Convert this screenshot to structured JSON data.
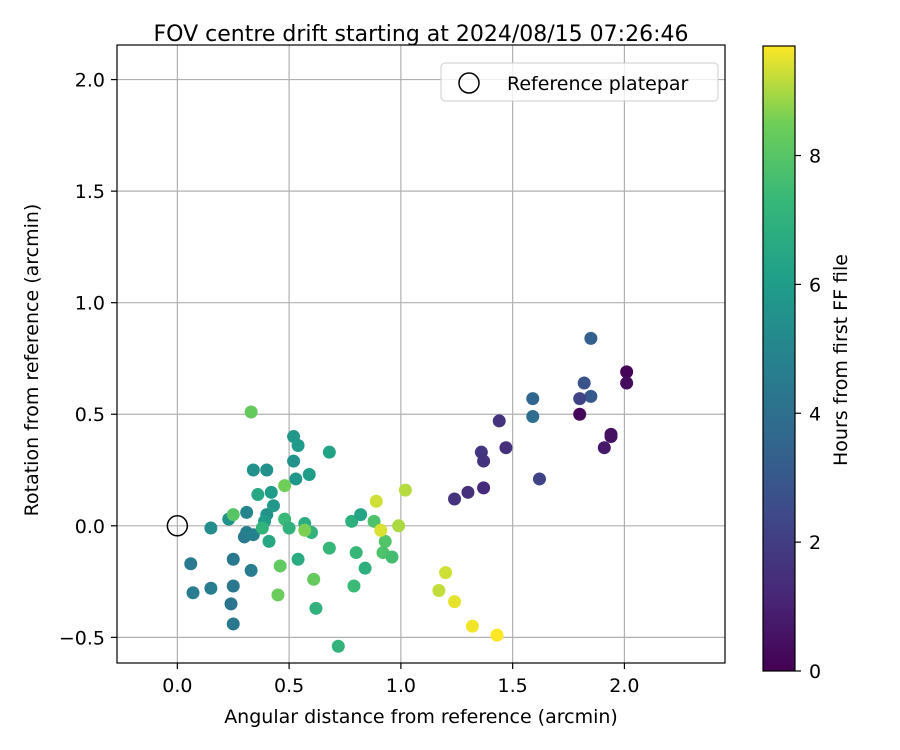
{
  "chart_data": {
    "type": "scatter",
    "title": "FOV centre drift starting at 2024/08/15 07:26:46",
    "xlabel": "Angular distance from reference (arcmin)",
    "ylabel": "Rotation from reference (arcmin)",
    "xlim": [
      -0.27,
      2.45
    ],
    "ylim": [
      -0.615,
      2.155
    ],
    "xticks": [
      0.0,
      0.5,
      1.0,
      1.5,
      2.0
    ],
    "xtick_labels": [
      "0.0",
      "0.5",
      "1.0",
      "1.5",
      "2.0"
    ],
    "yticks": [
      -0.5,
      0.0,
      0.5,
      1.0,
      1.5,
      2.0
    ],
    "ytick_labels": [
      "−0.5",
      "0.0",
      "0.5",
      "1.0",
      "1.5",
      "2.0"
    ],
    "grid": true,
    "legend": {
      "placement": "top-right",
      "entries": [
        "Reference platepar"
      ]
    },
    "reference_point": {
      "label": "Reference platepar",
      "x": 0.0,
      "y": 0.0
    },
    "colorbar": {
      "label": "Hours from first FF file",
      "colormap": "viridis",
      "range": [
        0,
        9.7
      ],
      "ticks": [
        0,
        2,
        4,
        6,
        8
      ],
      "tick_labels": [
        "0",
        "2",
        "4",
        "6",
        "8"
      ]
    },
    "points": [
      {
        "x": 2.01,
        "y": 0.69,
        "c": 0.1
      },
      {
        "x": 2.01,
        "y": 0.64,
        "c": 0.3
      },
      {
        "x": 1.94,
        "y": 0.41,
        "c": 0.4
      },
      {
        "x": 1.94,
        "y": 0.4,
        "c": 0.5
      },
      {
        "x": 1.91,
        "y": 0.35,
        "c": 0.7
      },
      {
        "x": 1.8,
        "y": 0.5,
        "c": 0.2
      },
      {
        "x": 1.44,
        "y": 0.47,
        "c": 1.6
      },
      {
        "x": 1.36,
        "y": 0.33,
        "c": 1.7
      },
      {
        "x": 1.37,
        "y": 0.29,
        "c": 1.6
      },
      {
        "x": 1.47,
        "y": 0.35,
        "c": 1.5
      },
      {
        "x": 1.37,
        "y": 0.17,
        "c": 1.3
      },
      {
        "x": 1.3,
        "y": 0.15,
        "c": 1.5
      },
      {
        "x": 1.24,
        "y": 0.12,
        "c": 1.6
      },
      {
        "x": 1.62,
        "y": 0.21,
        "c": 2.2
      },
      {
        "x": 1.85,
        "y": 0.84,
        "c": 3.3
      },
      {
        "x": 1.82,
        "y": 0.64,
        "c": 2.8
      },
      {
        "x": 1.85,
        "y": 0.58,
        "c": 3.1
      },
      {
        "x": 1.8,
        "y": 0.57,
        "c": 2.2
      },
      {
        "x": 1.59,
        "y": 0.57,
        "c": 3.6
      },
      {
        "x": 1.59,
        "y": 0.49,
        "c": 3.9
      },
      {
        "x": 0.06,
        "y": -0.17,
        "c": 4.5
      },
      {
        "x": 0.07,
        "y": -0.3,
        "c": 4.6
      },
      {
        "x": 0.15,
        "y": -0.28,
        "c": 4.6
      },
      {
        "x": 0.25,
        "y": -0.15,
        "c": 4.4
      },
      {
        "x": 0.25,
        "y": -0.27,
        "c": 4.4
      },
      {
        "x": 0.24,
        "y": -0.35,
        "c": 4.3
      },
      {
        "x": 0.25,
        "y": -0.44,
        "c": 4.4
      },
      {
        "x": 0.33,
        "y": -0.2,
        "c": 4.6
      },
      {
        "x": 0.3,
        "y": -0.05,
        "c": 4.5
      },
      {
        "x": 0.31,
        "y": -0.03,
        "c": 4.7
      },
      {
        "x": 0.34,
        "y": -0.04,
        "c": 4.8
      },
      {
        "x": 0.31,
        "y": 0.06,
        "c": 5.0
      },
      {
        "x": 0.15,
        "y": -0.01,
        "c": 5.3
      },
      {
        "x": 0.23,
        "y": 0.03,
        "c": 5.6
      },
      {
        "x": 0.4,
        "y": 0.05,
        "c": 5.6
      },
      {
        "x": 0.4,
        "y": 0.25,
        "c": 5.5
      },
      {
        "x": 0.34,
        "y": 0.25,
        "c": 5.5
      },
      {
        "x": 0.43,
        "y": 0.09,
        "c": 5.8
      },
      {
        "x": 0.42,
        "y": 0.15,
        "c": 6.0
      },
      {
        "x": 0.39,
        "y": 0.02,
        "c": 6.0
      },
      {
        "x": 0.52,
        "y": 0.29,
        "c": 5.6
      },
      {
        "x": 0.52,
        "y": 0.4,
        "c": 5.8
      },
      {
        "x": 0.54,
        "y": 0.36,
        "c": 5.9
      },
      {
        "x": 0.53,
        "y": 0.21,
        "c": 5.7
      },
      {
        "x": 0.59,
        "y": 0.23,
        "c": 6.0
      },
      {
        "x": 0.68,
        "y": 0.33,
        "c": 6.3
      },
      {
        "x": 0.36,
        "y": 0.14,
        "c": 6.5
      },
      {
        "x": 0.41,
        "y": -0.07,
        "c": 6.5
      },
      {
        "x": 0.38,
        "y": -0.01,
        "c": 7.1
      },
      {
        "x": 0.48,
        "y": 0.03,
        "c": 7.4
      },
      {
        "x": 0.5,
        "y": -0.01,
        "c": 7.0
      },
      {
        "x": 0.57,
        "y": 0.01,
        "c": 6.8
      },
      {
        "x": 0.6,
        "y": -0.03,
        "c": 7.0
      },
      {
        "x": 0.54,
        "y": -0.15,
        "c": 6.7
      },
      {
        "x": 0.62,
        "y": -0.37,
        "c": 7.0
      },
      {
        "x": 0.68,
        "y": -0.1,
        "c": 7.3
      },
      {
        "x": 0.78,
        "y": 0.02,
        "c": 6.9
      },
      {
        "x": 0.82,
        "y": 0.05,
        "c": 6.4
      },
      {
        "x": 0.84,
        "y": -0.19,
        "c": 6.9
      },
      {
        "x": 0.8,
        "y": -0.12,
        "c": 7.3
      },
      {
        "x": 0.79,
        "y": -0.27,
        "c": 7.4
      },
      {
        "x": 0.72,
        "y": -0.54,
        "c": 7.1
      },
      {
        "x": 0.88,
        "y": 0.02,
        "c": 7.8
      },
      {
        "x": 0.93,
        "y": -0.07,
        "c": 7.9
      },
      {
        "x": 0.92,
        "y": -0.12,
        "c": 7.8
      },
      {
        "x": 0.96,
        "y": -0.14,
        "c": 7.6
      },
      {
        "x": 0.33,
        "y": 0.51,
        "c": 8.3
      },
      {
        "x": 0.48,
        "y": 0.18,
        "c": 8.5
      },
      {
        "x": 0.25,
        "y": 0.05,
        "c": 8.0
      },
      {
        "x": 0.46,
        "y": -0.18,
        "c": 8.2
      },
      {
        "x": 0.45,
        "y": -0.31,
        "c": 8.4
      },
      {
        "x": 0.57,
        "y": -0.02,
        "c": 8.6
      },
      {
        "x": 0.61,
        "y": -0.24,
        "c": 8.3
      },
      {
        "x": 0.89,
        "y": 0.11,
        "c": 9.3
      },
      {
        "x": 0.91,
        "y": -0.02,
        "c": 9.4
      },
      {
        "x": 0.99,
        "y": 0.0,
        "c": 9.0
      },
      {
        "x": 1.02,
        "y": 0.16,
        "c": 9.1
      },
      {
        "x": 1.17,
        "y": -0.29,
        "c": 9.2
      },
      {
        "x": 1.2,
        "y": -0.21,
        "c": 9.3
      },
      {
        "x": 1.24,
        "y": -0.34,
        "c": 9.5
      },
      {
        "x": 1.32,
        "y": -0.45,
        "c": 9.6
      },
      {
        "x": 1.43,
        "y": -0.49,
        "c": 9.7
      }
    ]
  }
}
